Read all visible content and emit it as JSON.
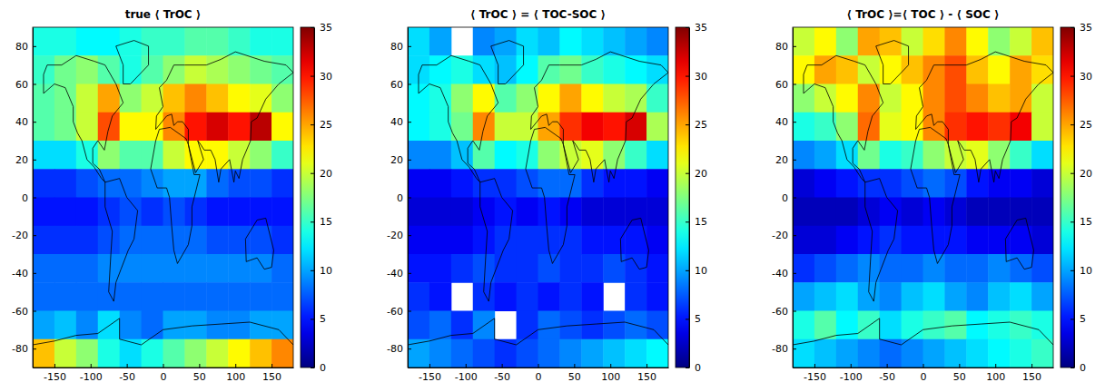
{
  "chart_data": [
    {
      "type": "heatmap",
      "title": "true ⟨ TrOC ⟩",
      "x": [
        -165,
        -135,
        -105,
        -75,
        -45,
        -15,
        15,
        45,
        75,
        105,
        135,
        165
      ],
      "y": [
        82.5,
        67.5,
        52.5,
        37.5,
        22.5,
        7.5,
        -7.5,
        -22.5,
        -37.5,
        -52.5,
        -67.5,
        -82.5
      ],
      "cells": [
        [
          14,
          14,
          13,
          13,
          14,
          15,
          15,
          16,
          16,
          15,
          14,
          14
        ],
        [
          15,
          17,
          18,
          16,
          14,
          16,
          18,
          20,
          19,
          18,
          17,
          16
        ],
        [
          16,
          17,
          20,
          25,
          18,
          20,
          24,
          26,
          24,
          22,
          21,
          18
        ],
        [
          16,
          17,
          20,
          28,
          22,
          22,
          26,
          30,
          32,
          30,
          33,
          22
        ],
        [
          12,
          12,
          14,
          18,
          16,
          16,
          20,
          22,
          22,
          20,
          18,
          15
        ],
        [
          6,
          6,
          7,
          8,
          8,
          9,
          10,
          10,
          8,
          7,
          7,
          6
        ],
        [
          5,
          5,
          5,
          6,
          7,
          6,
          7,
          6,
          5,
          5,
          5,
          5
        ],
        [
          6,
          6,
          6,
          7,
          8,
          8,
          8,
          8,
          7,
          7,
          7,
          6
        ],
        [
          8,
          8,
          8,
          9,
          9,
          9,
          9,
          9,
          9,
          9,
          9,
          8
        ],
        [
          8,
          8,
          8,
          8,
          8,
          8,
          8,
          8,
          8,
          8,
          8,
          8
        ],
        [
          10,
          11,
          9,
          12,
          9,
          8,
          10,
          10,
          9,
          9,
          10,
          10
        ],
        [
          24,
          20,
          18,
          14,
          12,
          14,
          16,
          18,
          20,
          22,
          24,
          26
        ]
      ],
      "xlim": [
        -180,
        180
      ],
      "xticks": [
        -150,
        -100,
        -50,
        0,
        50,
        100,
        150
      ],
      "ylim": [
        -90,
        90
      ],
      "yticks": [
        -80,
        -60,
        -40,
        -20,
        0,
        20,
        40,
        60,
        80
      ],
      "colorbar": {
        "range": [
          0,
          35
        ],
        "ticks": [
          0,
          5,
          10,
          15,
          20,
          25,
          30,
          35
        ]
      }
    },
    {
      "type": "heatmap",
      "title": "⟨ TrOC ⟩ = ⟨ TOC-SOC ⟩",
      "x": [
        -165,
        -135,
        -105,
        -75,
        -45,
        -15,
        15,
        45,
        75,
        105,
        135,
        165
      ],
      "y": [
        82.5,
        67.5,
        52.5,
        37.5,
        22.5,
        7.5,
        -7.5,
        -22.5,
        -37.5,
        -52.5,
        -67.5,
        -82.5
      ],
      "cells": [
        [
          12,
          10,
          null,
          9,
          10,
          12,
          11,
          13,
          12,
          11,
          10,
          9
        ],
        [
          12,
          13,
          14,
          12,
          11,
          13,
          16,
          17,
          15,
          14,
          13,
          12
        ],
        [
          13,
          14,
          18,
          22,
          16,
          18,
          22,
          25,
          22,
          20,
          19,
          15
        ],
        [
          13,
          14,
          17,
          26,
          20,
          20,
          25,
          29,
          31,
          30,
          32,
          19
        ],
        [
          9,
          9,
          11,
          16,
          13,
          14,
          18,
          20,
          21,
          18,
          15,
          12
        ],
        [
          4,
          4,
          5,
          6,
          6,
          7,
          8,
          8,
          6,
          5,
          5,
          4
        ],
        [
          3,
          3,
          3,
          4,
          5,
          4,
          5,
          4,
          3,
          3,
          3,
          3
        ],
        [
          4,
          4,
          4,
          5,
          6,
          6,
          6,
          6,
          5,
          5,
          5,
          4
        ],
        [
          5,
          5,
          6,
          7,
          6,
          6,
          7,
          6,
          6,
          7,
          6,
          5
        ],
        [
          6,
          5,
          null,
          6,
          5,
          6,
          5,
          6,
          5,
          null,
          6,
          5
        ],
        [
          7,
          8,
          6,
          9,
          null,
          6,
          8,
          7,
          6,
          7,
          8,
          7
        ],
        [
          10,
          9,
          8,
          7,
          6,
          7,
          8,
          9,
          10,
          11,
          12,
          13
        ]
      ],
      "xlim": [
        -180,
        180
      ],
      "xticks": [
        -150,
        -100,
        -50,
        0,
        50,
        100,
        150
      ],
      "ylim": [
        -90,
        90
      ],
      "yticks": [
        -80,
        -60,
        -40,
        -20,
        0,
        20,
        40,
        60,
        80
      ],
      "colorbar": {
        "range": [
          0,
          35
        ],
        "ticks": [
          0,
          5,
          10,
          15,
          20,
          25,
          30,
          35
        ]
      }
    },
    {
      "type": "heatmap",
      "title": "⟨ TrOC ⟩=⟨ TOC ⟩ - ⟨ SOC ⟩",
      "x": [
        -165,
        -135,
        -105,
        -75,
        -45,
        -15,
        15,
        45,
        75,
        105,
        135,
        165
      ],
      "y": [
        82.5,
        67.5,
        52.5,
        37.5,
        22.5,
        7.5,
        -7.5,
        -22.5,
        -37.5,
        -52.5,
        -67.5,
        -82.5
      ],
      "cells": [
        [
          20,
          22,
          18,
          25,
          24,
          20,
          23,
          26,
          22,
          18,
          20,
          24
        ],
        [
          22,
          25,
          24,
          20,
          22,
          24,
          26,
          28,
          24,
          22,
          25,
          23
        ],
        [
          18,
          20,
          22,
          26,
          20,
          22,
          26,
          28,
          26,
          24,
          25,
          20
        ],
        [
          14,
          15,
          18,
          27,
          21,
          22,
          26,
          29,
          30,
          29,
          31,
          20
        ],
        [
          9,
          10,
          12,
          17,
          14,
          15,
          18,
          20,
          21,
          18,
          15,
          12
        ],
        [
          3,
          4,
          5,
          6,
          6,
          7,
          8,
          7,
          5,
          4,
          4,
          3
        ],
        [
          2,
          2,
          2,
          3,
          4,
          3,
          4,
          3,
          2,
          2,
          2,
          2
        ],
        [
          3,
          3,
          4,
          5,
          6,
          5,
          5,
          5,
          4,
          4,
          4,
          3
        ],
        [
          6,
          7,
          8,
          9,
          8,
          8,
          9,
          8,
          8,
          9,
          8,
          7
        ],
        [
          10,
          11,
          12,
          10,
          9,
          11,
          12,
          10,
          9,
          11,
          12,
          10
        ],
        [
          14,
          16,
          13,
          15,
          12,
          14,
          15,
          16,
          13,
          14,
          15,
          14
        ],
        [
          12,
          11,
          10,
          9,
          8,
          9,
          10,
          11,
          12,
          13,
          14,
          15
        ]
      ],
      "xlim": [
        -180,
        180
      ],
      "xticks": [
        -150,
        -100,
        -50,
        0,
        50,
        100,
        150
      ],
      "ylim": [
        -90,
        90
      ],
      "yticks": [
        -80,
        -60,
        -40,
        -20,
        0,
        20,
        40,
        60,
        80
      ],
      "colorbar": {
        "range": [
          0,
          35
        ],
        "ticks": [
          0,
          5,
          10,
          15,
          20,
          25,
          30,
          35
        ]
      }
    }
  ]
}
